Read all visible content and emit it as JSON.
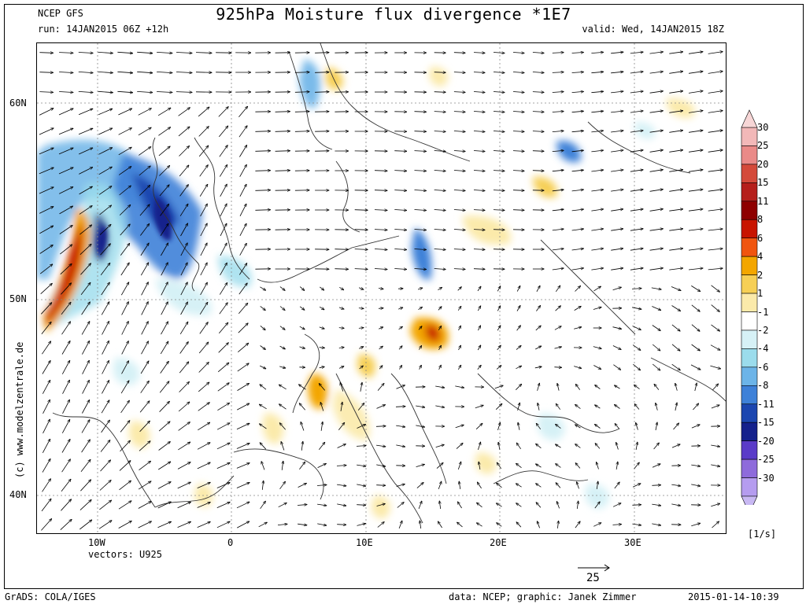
{
  "header": {
    "model": "NCEP GFS",
    "run": "run: 14JAN2015 06Z +12h",
    "title": "925hPa Moisture flux divergence *1E7",
    "valid": "valid: Wed, 14JAN2015 18Z"
  },
  "axes": {
    "lat_labels": [
      "60N",
      "50N",
      "40N"
    ],
    "lon_labels": [
      "10W",
      "0",
      "10E",
      "20E",
      "30E"
    ]
  },
  "vectors": {
    "label": "vectors: U925",
    "ref_value": "25"
  },
  "credit": "(c) www.modelzentrale.de",
  "colorbar": {
    "levels": [
      "30",
      "25",
      "20",
      "15",
      "11",
      "8",
      "6",
      "4",
      "2",
      "1",
      "-1",
      "-2",
      "-4",
      "-6",
      "-8",
      "-11",
      "-15",
      "-20",
      "-25",
      "-30"
    ],
    "colors": [
      "#f2b8b8",
      "#ea8a88",
      "#d44a3a",
      "#b51f1b",
      "#8e0000",
      "#c81400",
      "#f0550f",
      "#f3a600",
      "#f6cf55",
      "#fbeaaa",
      "#ffffff",
      "#d6f1f6",
      "#9bdcec",
      "#6cb4e8",
      "#3e81d8",
      "#1b46b0",
      "#14218c",
      "#5a3bc8",
      "#8e6bdb",
      "#b59cef"
    ],
    "unit": "[1/s]"
  },
  "footer": {
    "left": "GrADS: COLA/IGES",
    "center": "data: NCEP; graphic: Janek Zimmer",
    "right": "2015-01-14-10:39"
  }
}
